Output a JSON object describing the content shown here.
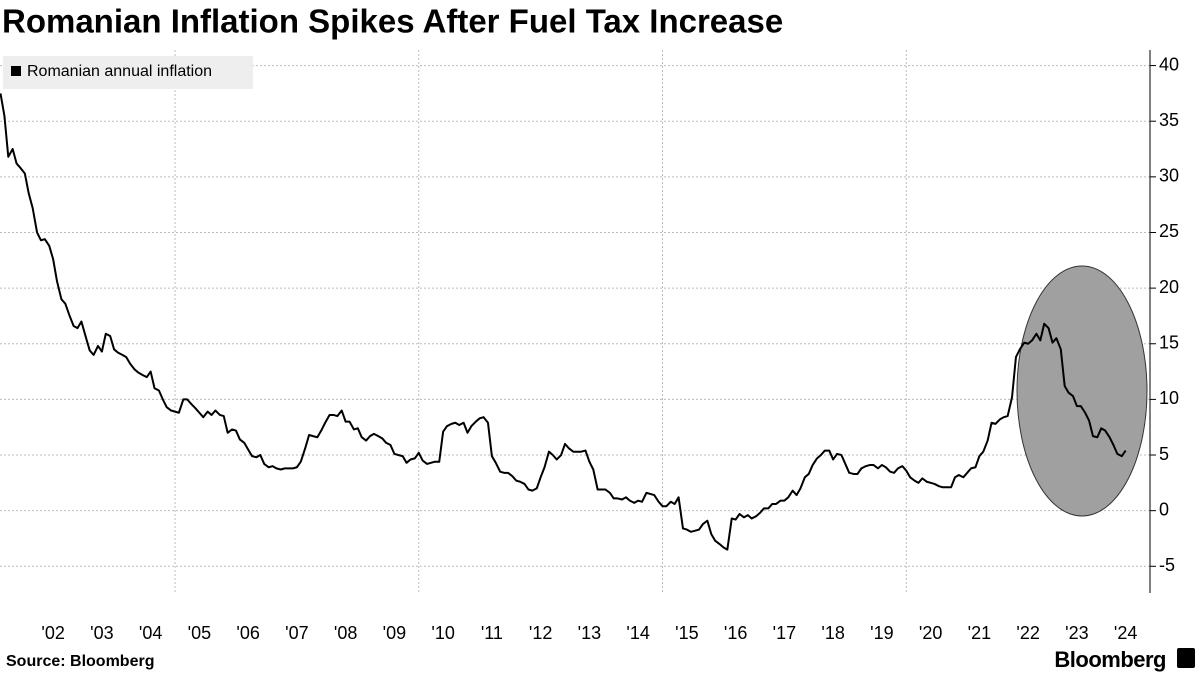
{
  "chart_data": {
    "type": "line",
    "title": "Romanian Inflation Spikes After Fuel Tax Increase",
    "source": "Source: Bloomberg",
    "brand": "Bloomberg",
    "x": [
      2001.42,
      2001.5,
      2001.58,
      2001.67,
      2001.75,
      2001.83,
      2001.92,
      2002,
      2002.08,
      2002.17,
      2002.25,
      2002.33,
      2002.42,
      2002.5,
      2002.58,
      2002.67,
      2002.75,
      2002.83,
      2002.92,
      2003,
      2003.08,
      2003.17,
      2003.25,
      2003.33,
      2003.42,
      2003.5,
      2003.58,
      2003.67,
      2003.75,
      2003.83,
      2003.92,
      2004,
      2004.08,
      2004.17,
      2004.25,
      2004.33,
      2004.42,
      2004.5,
      2004.58,
      2004.67,
      2004.75,
      2004.83,
      2004.92,
      2005,
      2005.08,
      2005.17,
      2005.25,
      2005.33,
      2005.42,
      2005.5,
      2005.58,
      2005.67,
      2005.75,
      2005.83,
      2005.92,
      2006,
      2006.08,
      2006.17,
      2006.25,
      2006.33,
      2006.42,
      2006.5,
      2006.58,
      2006.67,
      2006.75,
      2006.83,
      2006.92,
      2007,
      2007.08,
      2007.17,
      2007.25,
      2007.33,
      2007.42,
      2007.5,
      2007.58,
      2007.67,
      2007.75,
      2007.83,
      2007.92,
      2008,
      2008.08,
      2008.17,
      2008.25,
      2008.33,
      2008.42,
      2008.5,
      2008.58,
      2008.67,
      2008.75,
      2008.83,
      2008.92,
      2009,
      2009.08,
      2009.17,
      2009.25,
      2009.33,
      2009.42,
      2009.5,
      2009.58,
      2009.67,
      2009.75,
      2009.83,
      2009.92,
      2010,
      2010.08,
      2010.17,
      2010.25,
      2010.33,
      2010.42,
      2010.5,
      2010.58,
      2010.67,
      2010.75,
      2010.83,
      2010.92,
      2011,
      2011.08,
      2011.17,
      2011.25,
      2011.33,
      2011.42,
      2011.5,
      2011.58,
      2011.67,
      2011.75,
      2011.83,
      2011.92,
      2012,
      2012.08,
      2012.17,
      2012.25,
      2012.33,
      2012.42,
      2012.5,
      2012.58,
      2012.67,
      2012.75,
      2012.83,
      2012.92,
      2013,
      2013.08,
      2013.17,
      2013.25,
      2013.33,
      2013.42,
      2013.5,
      2013.58,
      2013.67,
      2013.75,
      2013.83,
      2013.92,
      2014,
      2014.08,
      2014.17,
      2014.25,
      2014.33,
      2014.42,
      2014.5,
      2014.58,
      2014.67,
      2014.75,
      2014.83,
      2014.92,
      2015,
      2015.08,
      2015.17,
      2015.25,
      2015.33,
      2015.42,
      2015.5,
      2015.58,
      2015.67,
      2015.75,
      2015.83,
      2015.92,
      2016,
      2016.08,
      2016.17,
      2016.25,
      2016.33,
      2016.42,
      2016.5,
      2016.58,
      2016.67,
      2016.75,
      2016.83,
      2016.92,
      2017,
      2017.08,
      2017.17,
      2017.25,
      2017.33,
      2017.42,
      2017.5,
      2017.58,
      2017.67,
      2017.75,
      2017.83,
      2017.92,
      2018,
      2018.08,
      2018.17,
      2018.25,
      2018.33,
      2018.42,
      2018.5,
      2018.58,
      2018.67,
      2018.75,
      2018.83,
      2018.92,
      2019,
      2019.08,
      2019.17,
      2019.25,
      2019.33,
      2019.42,
      2019.5,
      2019.58,
      2019.67,
      2019.75,
      2019.83,
      2019.92,
      2020,
      2020.08,
      2020.17,
      2020.25,
      2020.33,
      2020.42,
      2020.5,
      2020.58,
      2020.67,
      2020.75,
      2020.83,
      2020.92,
      2021,
      2021.08,
      2021.17,
      2021.25,
      2021.33,
      2021.42,
      2021.5,
      2021.58,
      2021.67,
      2021.75,
      2021.83,
      2021.92,
      2022,
      2022.08,
      2022.17,
      2022.25,
      2022.33,
      2022.42,
      2022.5,
      2022.58,
      2022.67,
      2022.75,
      2022.83,
      2022.92,
      2023,
      2023.08,
      2023.17,
      2023.25,
      2023.33,
      2023.42,
      2023.5,
      2023.58,
      2023.67,
      2023.75,
      2023.83,
      2023.92,
      2024,
      2024.08,
      2024.17,
      2024.25,
      2024.33,
      2024.42,
      2024.5
    ],
    "series": [
      {
        "name": "Romanian annual inflation",
        "color": "#000000",
        "values": [
          37.5,
          35.5,
          31.8,
          32.5,
          31.2,
          30.8,
          30.3,
          28.5,
          27.2,
          25.0,
          24.3,
          24.4,
          23.8,
          22.6,
          20.6,
          19.0,
          18.6,
          17.6,
          16.6,
          16.4,
          17.0,
          15.6,
          14.4,
          14.0,
          14.8,
          14.3,
          15.9,
          15.7,
          14.5,
          14.2,
          14.0,
          13.8,
          13.2,
          12.7,
          12.4,
          12.2,
          12.0,
          12.5,
          11.0,
          10.8,
          10.0,
          9.3,
          9.0,
          8.9,
          8.8,
          10.0,
          10.0,
          9.6,
          9.2,
          8.8,
          8.4,
          8.9,
          8.6,
          9.0,
          8.6,
          8.5,
          7.0,
          7.3,
          7.2,
          6.4,
          6.1,
          5.5,
          4.9,
          4.8,
          5.0,
          4.2,
          3.9,
          4.0,
          3.8,
          3.7,
          3.8,
          3.8,
          3.8,
          3.9,
          4.4,
          5.6,
          6.8,
          6.7,
          6.6,
          7.2,
          7.9,
          8.6,
          8.6,
          8.5,
          9.0,
          8.0,
          8.0,
          7.3,
          7.4,
          6.6,
          6.3,
          6.7,
          6.9,
          6.7,
          6.5,
          6.1,
          5.9,
          5.1,
          5.0,
          4.9,
          4.3,
          4.6,
          4.7,
          5.2,
          4.5,
          4.2,
          4.3,
          4.4,
          4.4,
          7.1,
          7.6,
          7.8,
          7.9,
          7.7,
          7.9,
          7.0,
          7.6,
          8.0,
          8.3,
          8.4,
          7.9,
          4.9,
          4.3,
          3.5,
          3.4,
          3.4,
          3.1,
          2.7,
          2.6,
          2.4,
          1.9,
          1.8,
          2.0,
          3.0,
          3.9,
          5.3,
          5.0,
          4.6,
          5.0,
          6.0,
          5.6,
          5.3,
          5.3,
          5.3,
          5.4,
          4.4,
          3.7,
          1.9,
          1.9,
          1.9,
          1.6,
          1.1,
          1.1,
          1.0,
          1.2,
          0.9,
          0.7,
          0.9,
          0.8,
          1.6,
          1.5,
          1.4,
          0.8,
          0.4,
          0.4,
          0.8,
          0.6,
          1.2,
          -1.6,
          -1.7,
          -1.9,
          -1.8,
          -1.7,
          -1.2,
          -0.9,
          -2.1,
          -2.7,
          -3.0,
          -3.3,
          -3.5,
          -0.7,
          -0.8,
          -0.3,
          -0.6,
          -0.4,
          -0.7,
          -0.5,
          -0.2,
          0.2,
          0.2,
          0.6,
          0.6,
          0.9,
          0.9,
          1.2,
          1.8,
          1.4,
          2.0,
          3.0,
          3.3,
          4.1,
          4.7,
          5.0,
          5.4,
          5.4,
          4.6,
          5.1,
          5.0,
          4.2,
          3.4,
          3.3,
          3.3,
          3.8,
          4.0,
          4.1,
          4.1,
          3.8,
          4.1,
          3.9,
          3.5,
          3.4,
          3.8,
          4.0,
          3.6,
          3.0,
          2.7,
          2.5,
          2.9,
          2.6,
          2.5,
          2.4,
          2.2,
          2.1,
          2.1,
          2.1,
          3.0,
          3.2,
          3.0,
          3.4,
          3.8,
          3.9,
          4.9,
          5.3,
          6.3,
          7.9,
          7.8,
          8.2,
          8.4,
          8.5,
          10.2,
          13.8,
          14.5,
          15.1,
          15.0,
          15.3,
          15.9,
          15.3,
          16.8,
          16.4,
          15.1,
          15.5,
          14.5,
          11.2,
          10.6,
          10.3,
          9.4,
          9.4,
          8.8,
          8.1,
          6.7,
          6.6,
          7.4,
          7.2,
          6.6,
          5.9,
          5.1,
          4.9,
          5.4
        ]
      }
    ],
    "xlim": [
      2001.41,
      2025
    ],
    "xticks": [
      {
        "value": 2002.5,
        "label": "'02"
      },
      {
        "value": 2003.5,
        "label": "'03"
      },
      {
        "value": 2004.5,
        "label": "'04"
      },
      {
        "value": 2005.5,
        "label": "'05"
      },
      {
        "value": 2006.5,
        "label": "'06"
      },
      {
        "value": 2007.5,
        "label": "'07"
      },
      {
        "value": 2008.5,
        "label": "'08"
      },
      {
        "value": 2009.5,
        "label": "'09"
      },
      {
        "value": 2010.5,
        "label": "'10"
      },
      {
        "value": 2011.5,
        "label": "'11"
      },
      {
        "value": 2012.5,
        "label": "'12"
      },
      {
        "value": 2013.5,
        "label": "'13"
      },
      {
        "value": 2014.5,
        "label": "'14"
      },
      {
        "value": 2015.5,
        "label": "'15"
      },
      {
        "value": 2016.5,
        "label": "'16"
      },
      {
        "value": 2017.5,
        "label": "'17"
      },
      {
        "value": 2018.5,
        "label": "'18"
      },
      {
        "value": 2019.5,
        "label": "'19"
      },
      {
        "value": 2020.5,
        "label": "'20"
      },
      {
        "value": 2021.5,
        "label": "'21"
      },
      {
        "value": 2022.5,
        "label": "'22"
      },
      {
        "value": 2023.5,
        "label": "'23"
      },
      {
        "value": 2024.5,
        "label": "'24"
      }
    ],
    "xgrid": [
      2005,
      2010,
      2015,
      2020
    ],
    "ylim": [
      -7.4,
      41.4
    ],
    "yticks": [
      -5,
      0,
      5,
      10,
      15,
      20,
      25,
      30,
      35,
      40
    ],
    "grid": true
  }
}
